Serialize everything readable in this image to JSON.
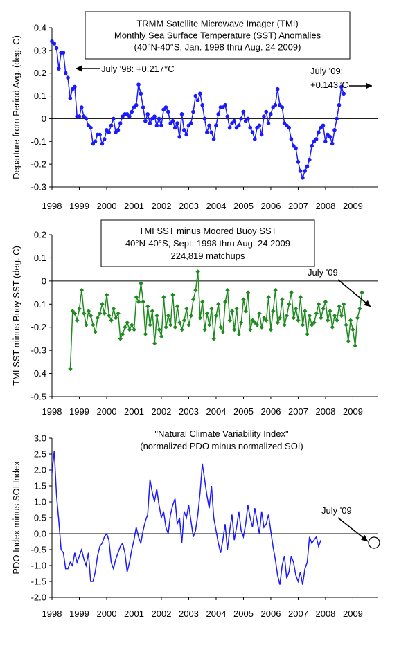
{
  "chart_data": [
    {
      "type": "line",
      "title_lines": [
        "TRMM Satellite Microwave Imager (TMI)",
        "Monthly Sea Surface Temperature (SST) Anomalies",
        "(40°N-40°S, Jan. 1998 thru Aug. 24 2009)"
      ],
      "ylabel": "Departure from Period Avg. (deg. C)",
      "xlabel": "",
      "xlim": [
        1998,
        2009.9
      ],
      "ylim": [
        -0.3,
        0.4
      ],
      "yticks": [
        "0.4",
        "0.3",
        "0.2",
        "0.1",
        "0",
        "-0.1",
        "-0.2",
        "-0.3"
      ],
      "xticks": [
        "1998",
        "1999",
        "2000",
        "2001",
        "2002",
        "2003",
        "2004",
        "2005",
        "2006",
        "2007",
        "2008",
        "2009"
      ],
      "series": [
        {
          "color": "#1a1aff",
          "marker": "circle",
          "x_start": 1998.0,
          "x_step": 0.0833,
          "values": [
            0.34,
            0.33,
            0.31,
            0.22,
            0.29,
            0.29,
            0.2,
            0.18,
            0.09,
            0.13,
            0.14,
            0.01,
            0.01,
            0.05,
            0.01,
            0.0,
            -0.03,
            -0.04,
            -0.11,
            -0.1,
            -0.07,
            -0.07,
            -0.11,
            -0.09,
            -0.05,
            -0.06,
            -0.03,
            0.0,
            -0.06,
            -0.05,
            -0.02,
            0.01,
            0.02,
            0.02,
            0.01,
            0.03,
            0.05,
            0.06,
            0.15,
            0.11,
            0.05,
            -0.01,
            0.02,
            -0.02,
            0.0,
            0.01,
            -0.03,
            0.0,
            -0.03,
            0.04,
            0.05,
            0.03,
            -0.02,
            -0.01,
            -0.04,
            -0.02,
            -0.08,
            0.02,
            -0.05,
            -0.07,
            -0.03,
            -0.02,
            0.03,
            0.1,
            0.08,
            0.11,
            0.06,
            0.0,
            -0.06,
            -0.03,
            -0.06,
            -0.09,
            -0.03,
            0.02,
            0.05,
            0.05,
            0.06,
            0.01,
            -0.04,
            -0.02,
            -0.01,
            -0.04,
            -0.03,
            0.0,
            0.03,
            -0.01,
            0.0,
            -0.04,
            -0.06,
            -0.09,
            -0.04,
            -0.03,
            -0.07,
            0.01,
            0.03,
            -0.02,
            0.02,
            0.05,
            0.06,
            0.13,
            0.06,
            0.05,
            -0.02,
            -0.03,
            -0.04,
            -0.09,
            -0.12,
            -0.13,
            -0.19,
            -0.23,
            -0.26,
            -0.23,
            -0.21,
            -0.18,
            -0.12,
            -0.1,
            -0.09,
            -0.06,
            -0.04,
            -0.03,
            -0.1,
            -0.07,
            -0.08,
            -0.11,
            -0.05,
            0.0,
            0.06,
            0.14,
            0.11
          ]
        }
      ],
      "annotations": [
        {
          "lines": [
            "July '98: +0.217°C"
          ]
        },
        {
          "lines": [
            "July '09:",
            "+0.143°C"
          ]
        }
      ]
    },
    {
      "type": "line",
      "title_lines": [
        "TMI SST minus Moored Buoy SST",
        "40°N-40°S, Sept. 1998 thru Aug. 24 2009",
        "224,819 matchups"
      ],
      "ylabel": "TMI SST minus Buoy SST (deg. C)",
      "xlabel": "",
      "xlim": [
        1998,
        2009.9
      ],
      "ylim": [
        -0.5,
        0.2
      ],
      "yticks": [
        "0.2",
        "0.1",
        "0",
        "-0.1",
        "-0.2",
        "-0.3",
        "-0.4",
        "-0.5"
      ],
      "xticks": [
        "1998",
        "1999",
        "2000",
        "2001",
        "2002",
        "2003",
        "2004",
        "2005",
        "2006",
        "2007",
        "2008",
        "2009"
      ],
      "series": [
        {
          "color": "#1f8a1f",
          "marker": "diamond",
          "x_start": 1998.67,
          "x_step": 0.0833,
          "values": [
            -0.38,
            -0.13,
            -0.14,
            -0.17,
            -0.12,
            -0.04,
            -0.14,
            -0.19,
            -0.13,
            -0.15,
            -0.19,
            -0.22,
            -0.16,
            -0.14,
            -0.1,
            -0.14,
            -0.06,
            -0.15,
            -0.17,
            -0.12,
            -0.16,
            -0.14,
            -0.25,
            -0.23,
            -0.2,
            -0.18,
            -0.21,
            -0.19,
            -0.21,
            -0.07,
            -0.09,
            -0.01,
            -0.09,
            -0.23,
            -0.11,
            -0.19,
            -0.13,
            -0.27,
            -0.15,
            -0.21,
            -0.24,
            -0.07,
            -0.2,
            -0.15,
            -0.19,
            -0.06,
            -0.2,
            -0.11,
            -0.18,
            -0.21,
            -0.17,
            -0.12,
            -0.19,
            -0.15,
            -0.08,
            -0.04,
            0.04,
            -0.16,
            -0.09,
            -0.21,
            -0.14,
            -0.19,
            -0.12,
            -0.25,
            -0.15,
            -0.1,
            -0.2,
            -0.22,
            -0.09,
            -0.04,
            -0.17,
            -0.13,
            -0.21,
            -0.12,
            -0.23,
            -0.18,
            -0.08,
            -0.13,
            -0.05,
            -0.21,
            -0.17,
            -0.18,
            -0.19,
            -0.14,
            -0.2,
            -0.16,
            -0.17,
            -0.07,
            -0.21,
            -0.13,
            -0.04,
            -0.18,
            -0.16,
            -0.08,
            -0.19,
            -0.15,
            -0.1,
            -0.05,
            -0.16,
            -0.12,
            -0.17,
            -0.07,
            -0.19,
            -0.13,
            -0.23,
            -0.15,
            -0.19,
            -0.18,
            -0.14,
            -0.1,
            -0.16,
            -0.12,
            -0.09,
            -0.17,
            -0.13,
            -0.2,
            -0.15,
            -0.17,
            -0.11,
            -0.15,
            -0.1,
            -0.19,
            -0.26,
            -0.17,
            -0.21,
            -0.28,
            -0.16,
            -0.12,
            -0.05
          ]
        }
      ],
      "annotations": [
        {
          "lines": [
            "July '09"
          ]
        }
      ]
    },
    {
      "type": "line",
      "title_lines": [
        "\"Natural Climate Variability Index\"",
        "(normalized PDO minus normalized SOI)"
      ],
      "ylabel": "PDO Index minus SOI Index",
      "xlabel": "",
      "xlim": [
        1998,
        2009.9
      ],
      "ylim": [
        -2.0,
        3.0
      ],
      "yticks": [
        "3.0",
        "2.5",
        "2.0",
        "1.5",
        "1.0",
        "0.5",
        "0.0",
        "-0.5",
        "-1.0",
        "-1.5",
        "-2.0"
      ],
      "xticks": [
        "1998",
        "1999",
        "2000",
        "2001",
        "2002",
        "2003",
        "2004",
        "2005",
        "2006",
        "2007",
        "2008",
        "2009"
      ],
      "series": [
        {
          "color": "#1a1aff",
          "marker": "none",
          "x_start": 1998.0,
          "x_step": 0.0833,
          "values": [
            1.9,
            2.6,
            1.2,
            0.4,
            -0.5,
            -0.6,
            -1.1,
            -1.1,
            -0.9,
            -1.0,
            -0.6,
            -0.9,
            -0.7,
            -0.5,
            -0.8,
            -1.0,
            -0.6,
            -1.5,
            -1.5,
            -1.2,
            -0.7,
            -0.4,
            -0.3,
            -0.1,
            0.0,
            -0.2,
            -0.9,
            -1.1,
            -0.8,
            -0.6,
            -0.4,
            -0.3,
            -0.6,
            -1.2,
            -0.9,
            -0.5,
            -0.2,
            0.2,
            -0.1,
            -0.3,
            0.1,
            0.4,
            0.6,
            1.7,
            1.3,
            1.0,
            1.4,
            0.9,
            0.5,
            0.7,
            0.2,
            0.0,
            0.6,
            0.9,
            1.1,
            0.3,
            0.5,
            -0.3,
            0.7,
            0.5,
            0.9,
            0.4,
            -0.1,
            0.1,
            0.6,
            1.3,
            2.2,
            1.7,
            1.2,
            0.8,
            1.5,
            0.5,
            0.1,
            -0.3,
            -0.6,
            -0.2,
            0.3,
            -0.5,
            0.1,
            0.6,
            -0.2,
            0.2,
            0.7,
            0.1,
            -0.1,
            0.3,
            0.9,
            0.5,
            0.2,
            0.8,
            0.4,
            0.0,
            0.7,
            0.2,
            0.3,
            0.6,
            0.1,
            -0.4,
            -0.8,
            -1.3,
            -1.6,
            -1.0,
            -0.7,
            -1.4,
            -1.2,
            -0.7,
            -0.9,
            -1.3,
            -1.5,
            -1.2,
            -1.6,
            -1.1,
            -0.9,
            -0.1,
            -0.3,
            -0.2,
            -0.1,
            -0.4,
            -0.2
          ]
        }
      ],
      "annotations": [
        {
          "lines": [
            "July '09"
          ]
        }
      ]
    }
  ]
}
